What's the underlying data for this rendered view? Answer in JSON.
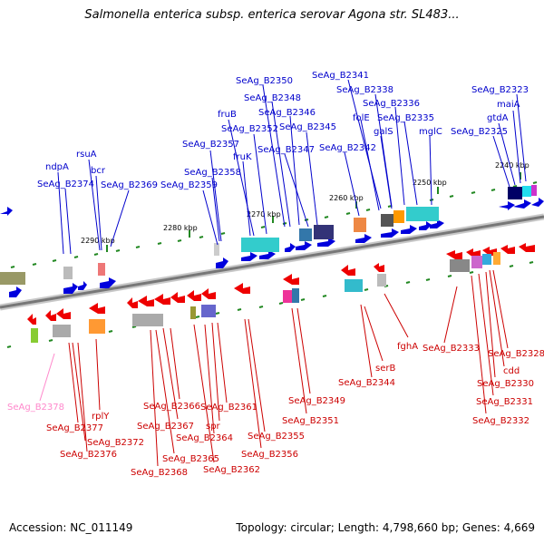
{
  "title": "Salmonella enterica subsp. enterica serovar Agona str. SL483...",
  "accession": "Accession: NC_011149",
  "summary": "Topology: circular; Length: 4,798,660 bp; Genes: 4,669",
  "colors": {
    "forward": "#0000cc",
    "reverse": "#cc0000",
    "pseudo": "#ff66aa",
    "backbone": "#777777",
    "ticks": "#228822"
  },
  "ticks": [
    "2240 kbp",
    "2250 kbp",
    "2260 kbp",
    "2270 kbp",
    "2280 kbp",
    "2290 kbp"
  ],
  "upper_labels": [
    "SeAg_B2323",
    "maiA",
    "gtdA",
    "SeAg_B2325",
    "SeAg_B2341",
    "SeAg_B2338",
    "SeAg_B2336",
    "SeAg_B2335",
    "folE",
    "galS",
    "mglC",
    "SeAg_B2342",
    "SeAg_B2350",
    "SeAg_B2348",
    "SeAg_B2346",
    "SeAg_B2345",
    "SeAg_B2347",
    "fruB",
    "SeAg_B2352",
    "fruK",
    "SeAg_B2357",
    "SeAg_B2358",
    "SeAg_B2359",
    "rsuA",
    "bcr",
    "SeAg_B2369",
    "ndpA",
    "SeAg_B2374"
  ],
  "lower_labels": [
    "fghA",
    "SeAg_B2333",
    "SeAg_B2328",
    "cdd",
    "SeAg_B2330",
    "SeAg_B2331",
    "SeAg_B2332",
    "serB",
    "SeAg_B2344",
    "SeAg_B2349",
    "SeAg_B2351",
    "SeAg_B2355",
    "SeAg_B2356",
    "SeAg_B2361",
    "spr",
    "SeAg_B2364",
    "SeAg_B2362",
    "SeAg_B2366",
    "SeAg_B2367",
    "SeAg_B2365",
    "SeAg_B2368",
    "SeAg_B2378",
    "rplY",
    "SeAg_B2377",
    "SeAg_B2372",
    "SeAg_B2376"
  ]
}
